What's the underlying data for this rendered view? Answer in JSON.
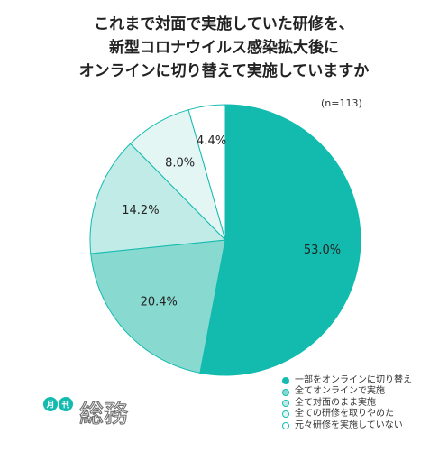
{
  "title_lines": [
    "これまで対面で実施していた研修を、",
    "新型コロナウイルス感染拡大後に",
    "オンラインに切り替えて実施していますか"
  ],
  "sample_note": "(n=113)",
  "brand": {
    "badge_1": "月",
    "badge_2": "刊",
    "wordmark": "総務"
  },
  "colors": {
    "accent": "#13bbaf",
    "slices": [
      "#13bbaf",
      "#88d9d0",
      "#c1ebe6",
      "#e4f6f4",
      "#ffffff"
    ],
    "stroke": "#13bbaf"
  },
  "chart_data": {
    "type": "pie",
    "title": "これまで対面で実施していた研修を、新型コロナウイルス感染拡大後にオンラインに切り替えて実施していますか",
    "categories": [
      "一部をオンラインに切り替え",
      "全てオンラインで実施",
      "全て対面のまま実施",
      "全ての研修を取りやめた",
      "元々研修を実施していない"
    ],
    "values": [
      53.0,
      20.4,
      14.2,
      8.0,
      4.4
    ],
    "value_labels": [
      "53.0%",
      "20.4%",
      "14.2%",
      "8.0%",
      "4.4%"
    ],
    "start": "12 o'clock",
    "direction": "clockwise",
    "legend_position": "bottom-right"
  }
}
